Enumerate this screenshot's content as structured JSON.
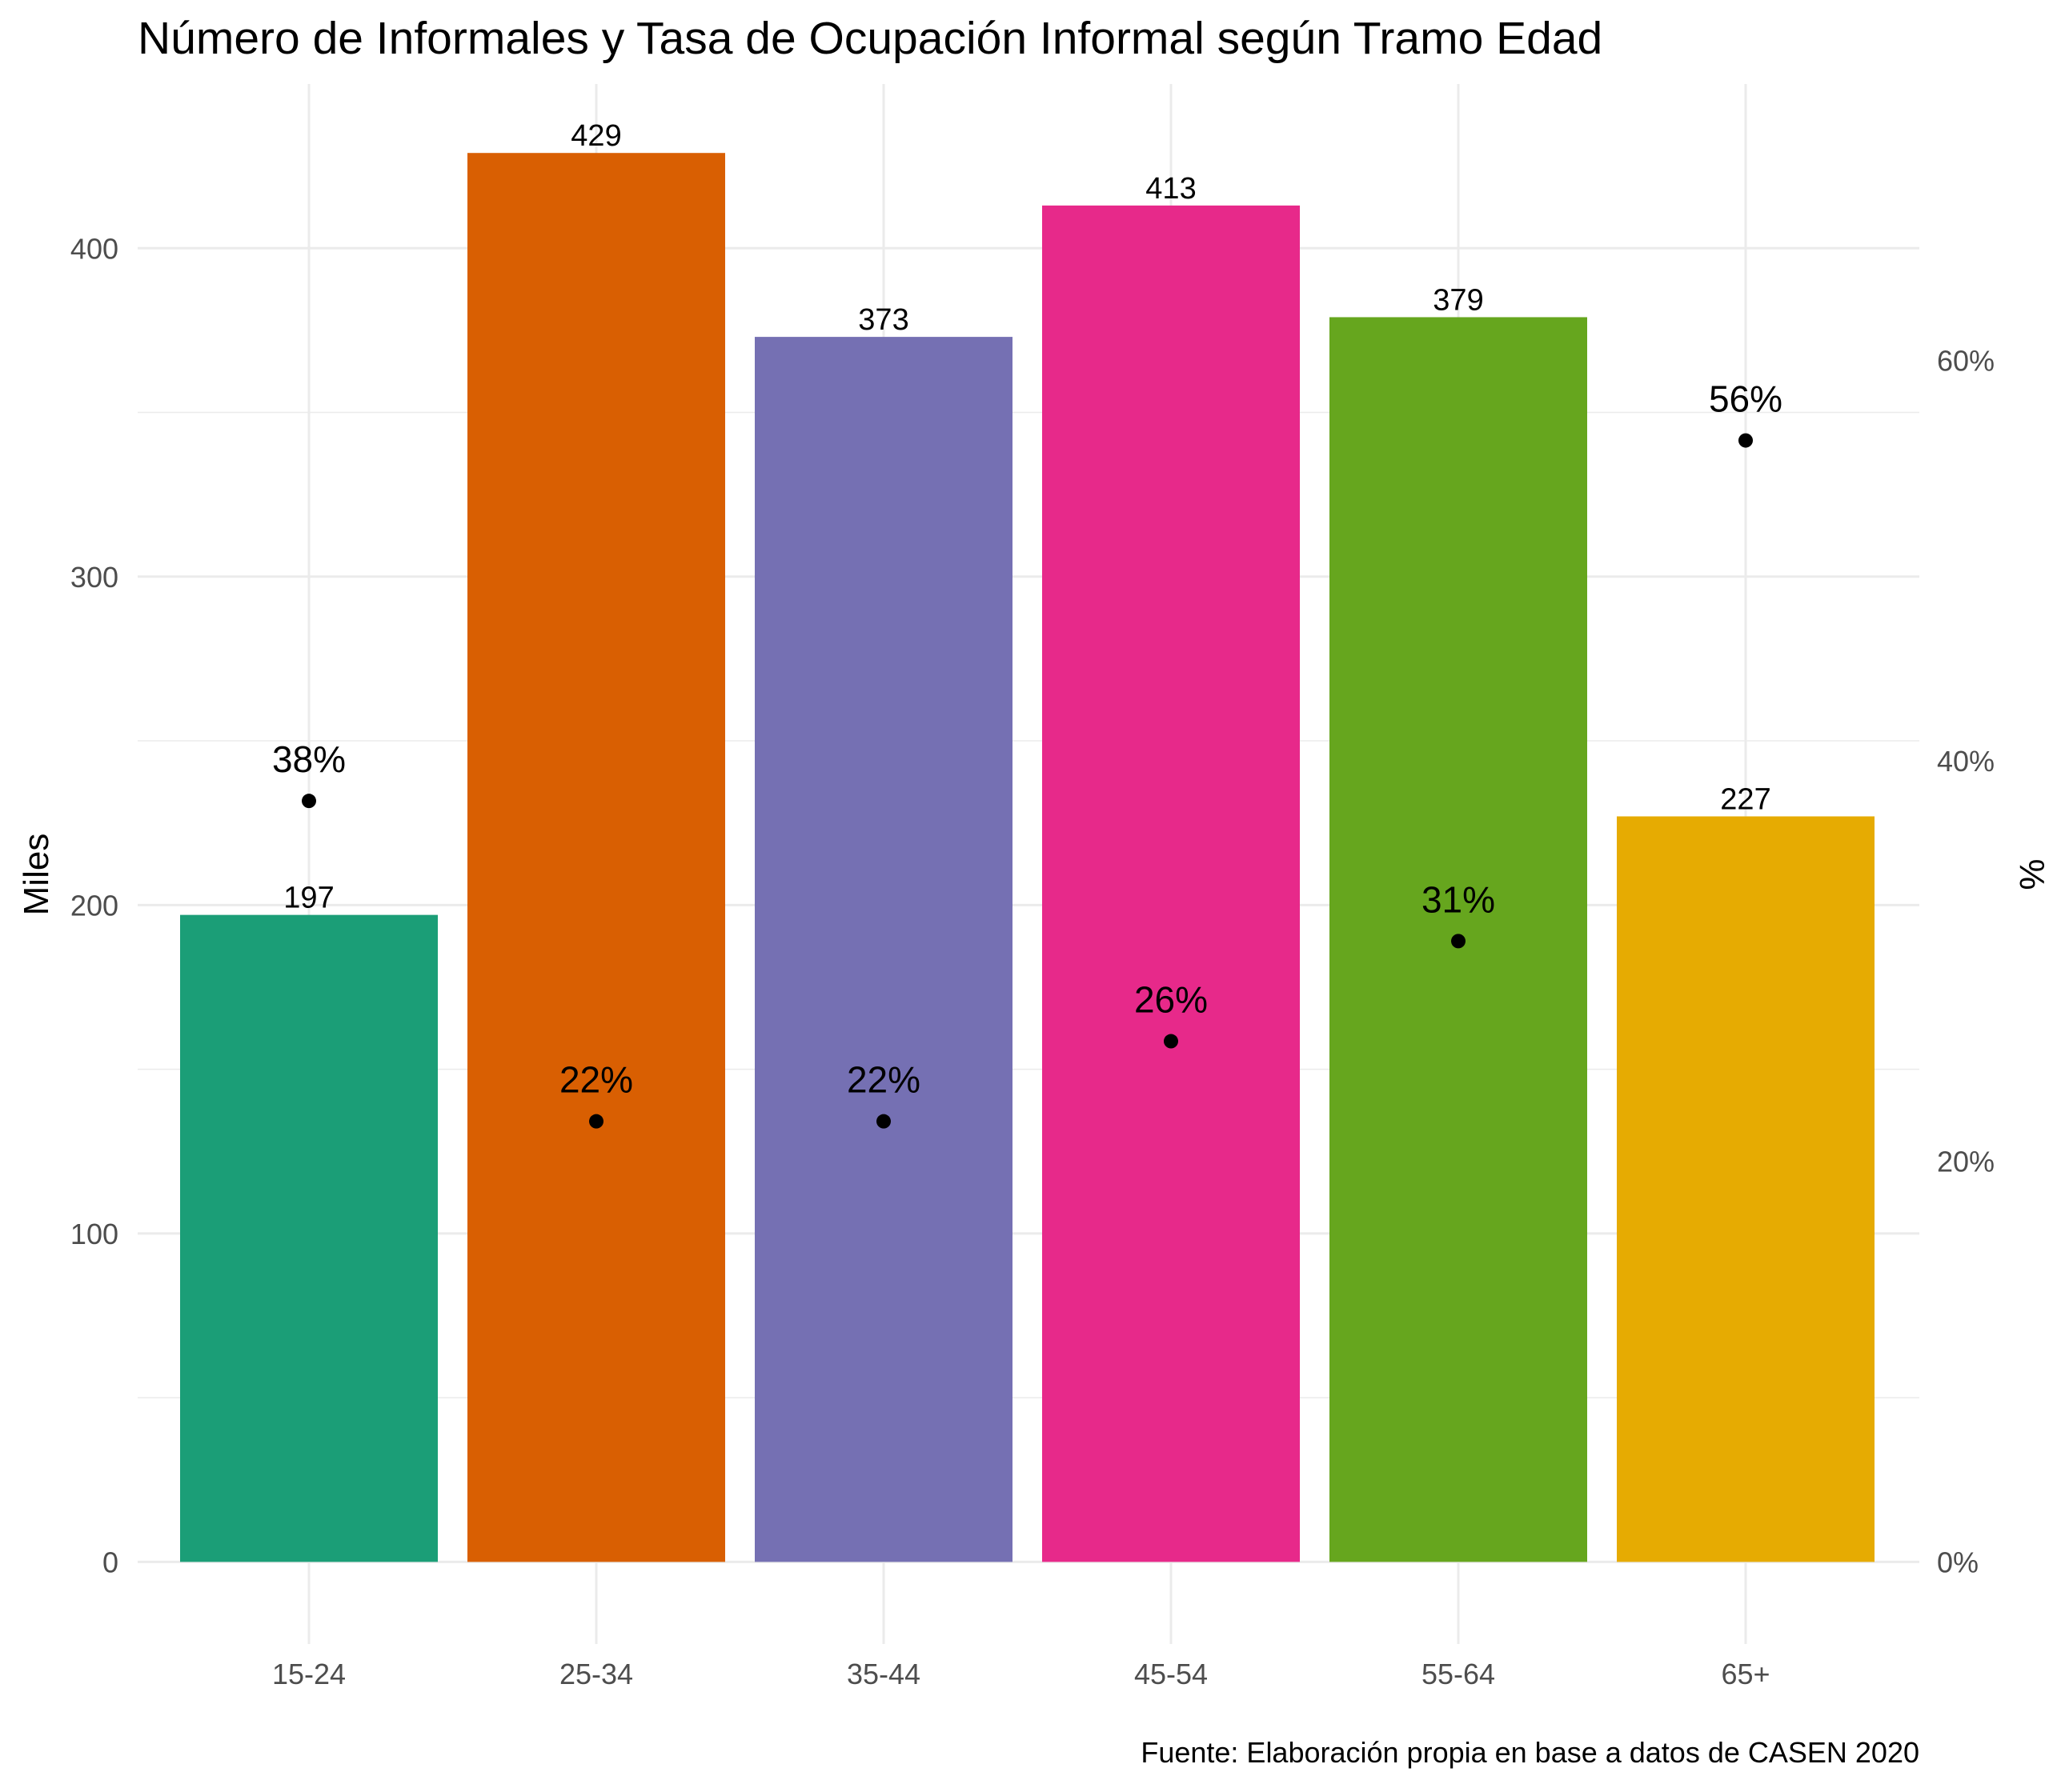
{
  "chart_data": {
    "type": "bar",
    "title": "Número de Informales y Tasa de Ocupación Informal según Tramo Edad",
    "ylabel": "Miles",
    "y2label": "%",
    "caption": "Fuente: Elaboración propia en base a datos de CASEN 2020",
    "categories": [
      "15-24",
      "25-34",
      "35-44",
      "45-54",
      "55-64",
      "65+"
    ],
    "series": [
      {
        "axis": "left",
        "type": "bar",
        "values": [
          197,
          429,
          373,
          413,
          379,
          227
        ],
        "labels": [
          "197",
          "429",
          "373",
          "413",
          "379",
          "227"
        ],
        "colors": [
          "#1b9e77",
          "#d95f02",
          "#7570b3",
          "#e7298a",
          "#66a61e",
          "#e6ab02"
        ]
      },
      {
        "axis": "right",
        "type": "scatter",
        "values": [
          0.38,
          0.22,
          0.22,
          0.26,
          0.31,
          0.56
        ],
        "labels": [
          "38%",
          "22%",
          "22%",
          "26%",
          "31%",
          "56%"
        ],
        "color": "#000000"
      }
    ],
    "ylim": [
      -25,
      450
    ],
    "y_ticks": [
      0,
      100,
      200,
      300,
      400
    ],
    "y_tick_labels": [
      "0",
      "100",
      "200",
      "300",
      "400"
    ],
    "y2lim": [
      -0.041,
      0.738
    ],
    "y2_ticks": [
      0,
      0.2,
      0.4,
      0.6
    ],
    "y2_tick_labels": [
      "0%",
      "20%",
      "40%",
      "60%"
    ],
    "grid": true,
    "legend": "none"
  }
}
